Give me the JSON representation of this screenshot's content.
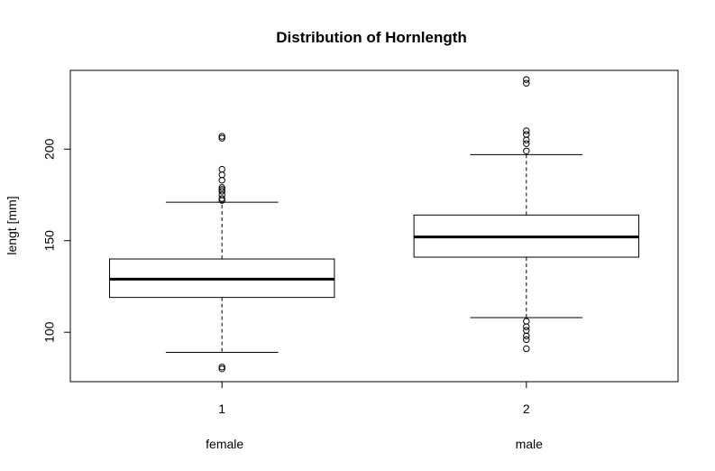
{
  "chart_data": {
    "type": "box",
    "title": "Distribution of Hornlength",
    "xlabel": "",
    "ylabel": "lengt [mm]",
    "ylim": [
      73,
      243
    ],
    "yticks": [
      100,
      150,
      200
    ],
    "categories": [
      "1",
      "2"
    ],
    "group_labels": [
      "female",
      "male"
    ],
    "boxes": [
      {
        "category": "1",
        "group": "female",
        "whisker_low": 89,
        "q1": 119,
        "median": 129,
        "q3": 140,
        "whisker_high": 171,
        "outliers": [
          80,
          81,
          172,
          173,
          175,
          177,
          178,
          179,
          183,
          186,
          189,
          206,
          207
        ]
      },
      {
        "category": "2",
        "group": "male",
        "whisker_low": 108,
        "q1": 141,
        "median": 152,
        "q3": 164,
        "whisker_high": 197,
        "outliers": [
          91,
          96,
          98,
          101,
          103,
          106,
          199,
          203,
          205,
          208,
          210,
          236,
          238
        ]
      }
    ],
    "grid": false
  }
}
